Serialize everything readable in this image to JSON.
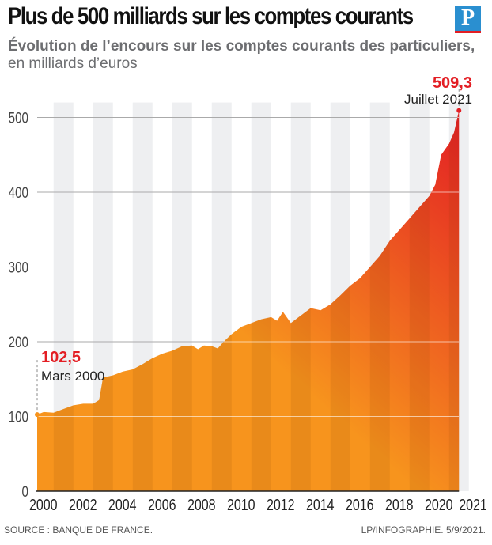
{
  "title": "Plus de 500 milliards sur les comptes courants",
  "logo": "P",
  "subtitle_bold": "Évolution de l’encours sur les comptes courants des particuliers,",
  "subtitle_regular": " en milliards d’euros",
  "source": "SOURCE : BANQUE DE FRANCE.",
  "credit": "LP/INFOGRAPHIE.  5/9/2021.",
  "colors": {
    "start": "#f7941d",
    "end": "#e31e24",
    "annotation": "#e31e24"
  },
  "chart_data": {
    "type": "area",
    "ylim": [
      0,
      520
    ],
    "yticks": [
      "0",
      "100",
      "200",
      "300",
      "400",
      "500"
    ],
    "xticks": [
      "2000",
      "2002",
      "2004",
      "2006",
      "2008",
      "2010",
      "2012",
      "2014",
      "2016",
      "2018",
      "2020",
      "2021"
    ],
    "grid": true,
    "x": [
      2000.17,
      2000.5,
      2001,
      2001.5,
      2002,
      2002.5,
      2003,
      2003.3,
      2003.5,
      2004,
      2004.5,
      2005,
      2005.5,
      2006,
      2006.5,
      2007,
      2007.5,
      2008,
      2008.3,
      2008.6,
      2009,
      2009.3,
      2009.6,
      2010,
      2010.5,
      2011,
      2011.5,
      2012,
      2012.3,
      2012.6,
      2013,
      2013.5,
      2014,
      2014.5,
      2015,
      2015.5,
      2016,
      2016.5,
      2017,
      2017.5,
      2018,
      2018.5,
      2019,
      2019.5,
      2020,
      2020.3,
      2020.6,
      2021,
      2021.25,
      2021.5
    ],
    "y": [
      102.5,
      106,
      105,
      110,
      115,
      117,
      117,
      122,
      152,
      155,
      160,
      163,
      170,
      178,
      184,
      188,
      194,
      195,
      190,
      195,
      194,
      191,
      200,
      210,
      220,
      225,
      230,
      233,
      228,
      240,
      225,
      235,
      245,
      242,
      250,
      262,
      275,
      285,
      300,
      315,
      335,
      350,
      365,
      380,
      395,
      410,
      450,
      465,
      480,
      509.3
    ],
    "annotations": [
      {
        "value": "102,5",
        "label": "Mars 2000"
      },
      {
        "value": "509,3",
        "label": "Juillet 2021"
      }
    ]
  }
}
